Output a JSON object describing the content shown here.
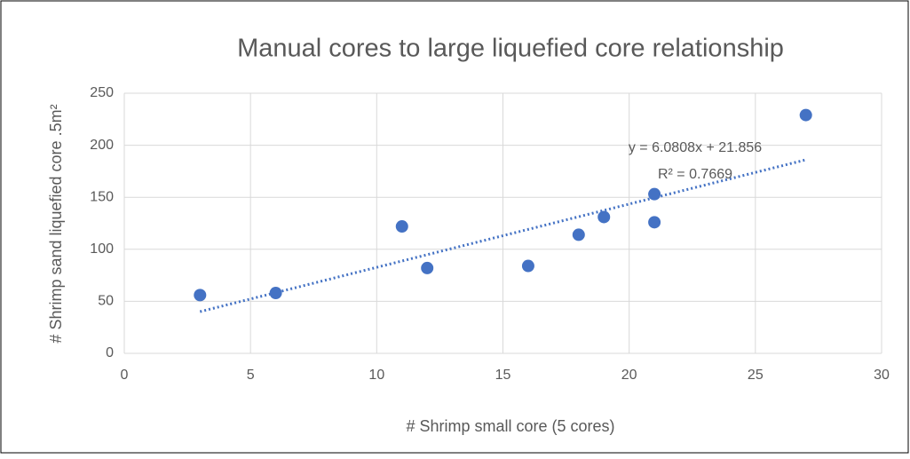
{
  "chart_data": {
    "type": "scatter",
    "title": "Manual cores to large liquefied core relationship",
    "x_label": "# Shrimp small core (5 cores)",
    "y_label": "# Shrimp sand liquefied core .5m²",
    "series": [
      {
        "color": "#4472c4",
        "x": [
          3,
          6,
          11,
          12,
          16,
          18,
          19,
          21,
          21,
          27
        ],
        "values": [
          56,
          58,
          122,
          82,
          84,
          114,
          131,
          153,
          126,
          229
        ]
      }
    ],
    "trendline": {
      "slope": 6.0808,
      "intercept": 21.856,
      "label": "y = 6.0808x + 21.856",
      "r2_label": "R² = 0.7669"
    },
    "xlim": [
      0,
      30
    ],
    "xticks": [
      0,
      5,
      10,
      15,
      20,
      25,
      30
    ],
    "ylim": [
      0,
      250
    ],
    "yticks": [
      0,
      50,
      100,
      150,
      200,
      250
    ],
    "grid": true
  }
}
